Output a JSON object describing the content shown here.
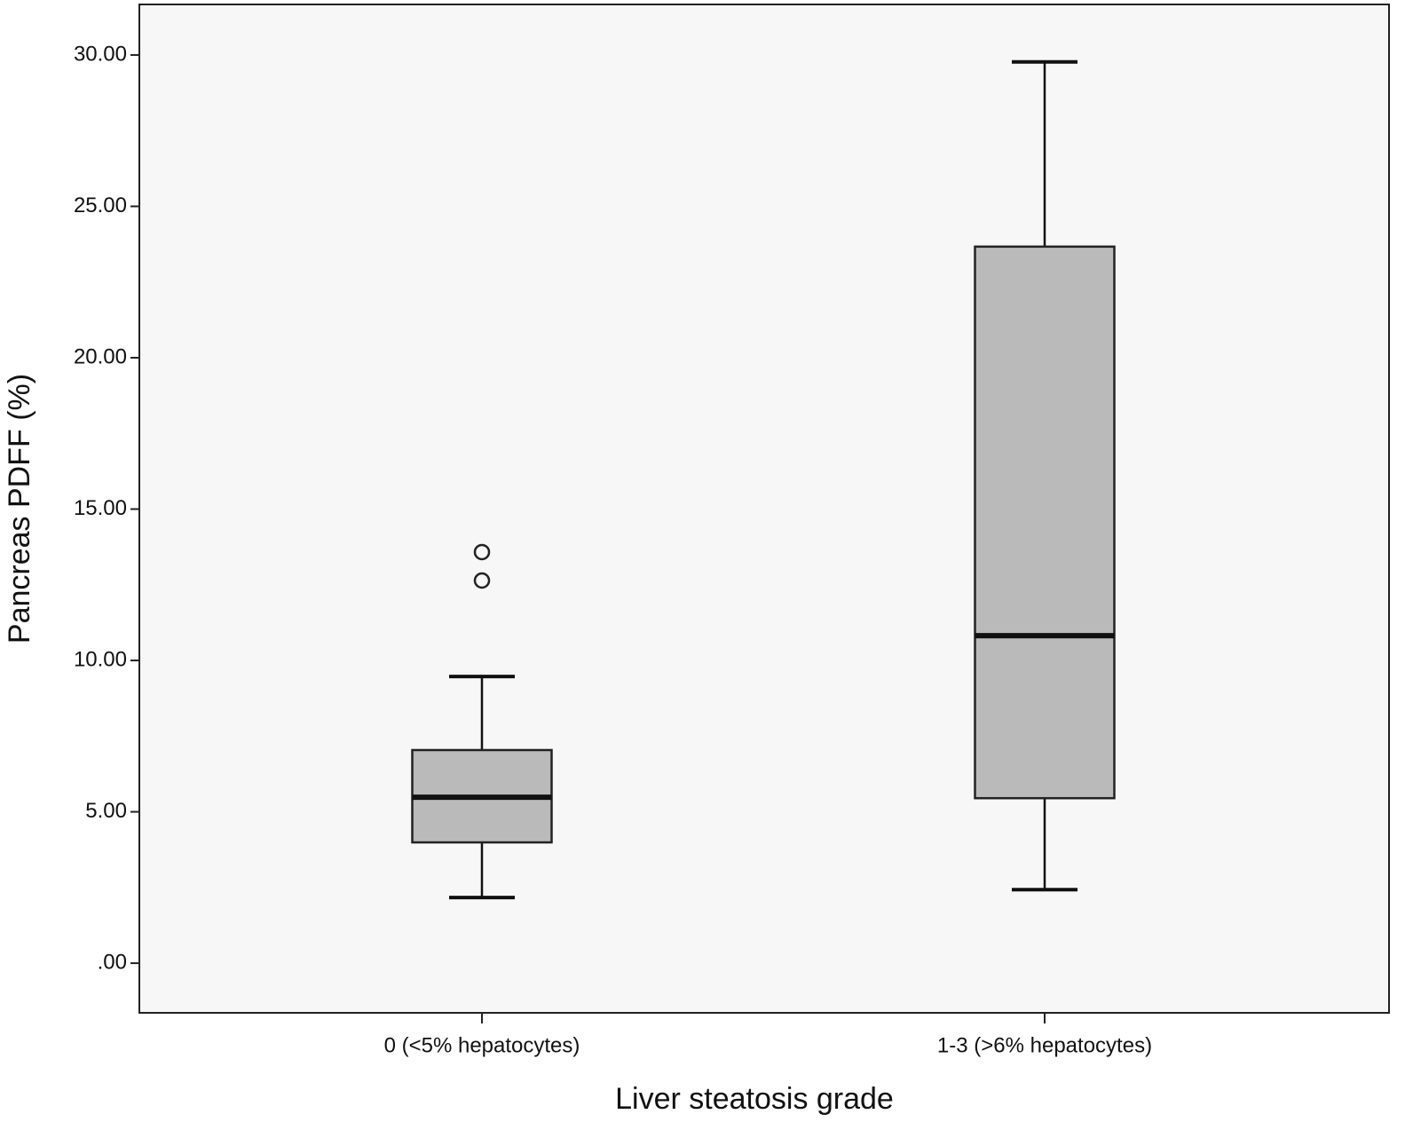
{
  "chart_data": {
    "type": "boxplot",
    "x_label": "Liver steatosis grade",
    "y_label": "Pancreas PDFF (%)",
    "categories": [
      "0 (<5% hepatocytes)",
      "1-3 (>6% hepatocytes)"
    ],
    "boxes": [
      {
        "low": 2.17,
        "q1": 3.99,
        "median": 5.48,
        "q3": 7.04,
        "high": 9.47,
        "outliers": [
          13.58,
          12.64
        ]
      },
      {
        "low": 2.43,
        "q1": 5.45,
        "median": 10.82,
        "q3": 23.67,
        "high": 29.77,
        "outliers": []
      }
    ],
    "color": "#bababa",
    "ylim": [
      -1.64,
      31.67
    ],
    "yticks": [
      {
        "value": 0,
        "label": ".00"
      },
      {
        "value": 5,
        "label": "5.00"
      },
      {
        "value": 10,
        "label": "10.00"
      },
      {
        "value": 15,
        "label": "15.00"
      },
      {
        "value": 20,
        "label": "20.00"
      },
      {
        "value": 25,
        "label": "25.00"
      },
      {
        "value": 30,
        "label": "30.00"
      }
    ],
    "grid": false
  }
}
